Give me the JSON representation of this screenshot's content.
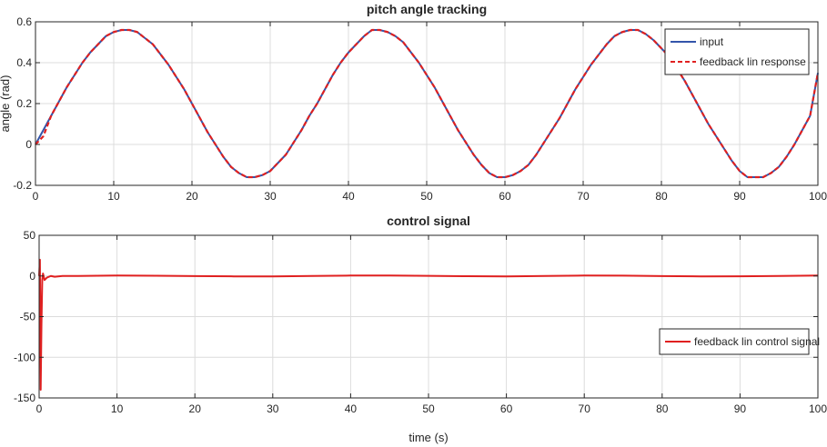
{
  "chart_data": [
    {
      "type": "line",
      "title": "pitch angle tracking",
      "xlabel": "",
      "ylabel": "angle (rad)",
      "xlim": [
        0,
        100
      ],
      "ylim": [
        -0.2,
        0.6
      ],
      "xticks": [
        0,
        10,
        20,
        30,
        40,
        50,
        60,
        70,
        80,
        90,
        100
      ],
      "yticks": [
        -0.2,
        0,
        0.2,
        0.4,
        0.6
      ],
      "ytick_labels": [
        "-0.2",
        "0",
        "0.2",
        "0.4",
        "0.6"
      ],
      "grid": true,
      "legend_position": "top-right",
      "series": [
        {
          "name": "input",
          "color": "#3355aa",
          "style": "solid",
          "x": [
            0,
            1,
            2,
            3,
            4,
            5,
            6,
            7,
            8,
            9,
            10,
            11,
            12,
            13,
            14,
            15,
            16,
            17,
            18,
            19,
            20,
            21,
            22,
            23,
            24,
            25,
            26,
            27,
            28,
            29,
            30,
            31,
            32,
            33,
            34,
            35,
            36,
            37,
            38,
            39,
            40,
            41,
            42,
            43,
            44,
            45,
            46,
            47,
            48,
            49,
            50,
            51,
            52,
            53,
            54,
            55,
            56,
            57,
            58,
            59,
            60,
            61,
            62,
            63,
            64,
            65,
            66,
            67,
            68,
            69,
            70,
            71,
            72,
            73,
            74,
            75,
            76,
            77,
            78,
            79,
            80,
            81,
            82,
            83,
            84,
            85,
            86,
            87,
            88,
            89,
            90,
            91,
            92,
            93,
            94,
            95,
            96,
            97,
            98,
            99,
            100
          ],
          "y": [
            0.0,
            0.07,
            0.14,
            0.21,
            0.28,
            0.34,
            0.4,
            0.45,
            0.49,
            0.53,
            0.55,
            0.56,
            0.56,
            0.55,
            0.52,
            0.49,
            0.44,
            0.39,
            0.33,
            0.27,
            0.2,
            0.13,
            0.06,
            0.0,
            -0.06,
            -0.11,
            -0.14,
            -0.16,
            -0.16,
            -0.15,
            -0.13,
            -0.09,
            -0.05,
            0.01,
            0.07,
            0.14,
            0.2,
            0.27,
            0.34,
            0.4,
            0.45,
            0.49,
            0.53,
            0.56,
            0.56,
            0.55,
            0.53,
            0.5,
            0.45,
            0.4,
            0.34,
            0.28,
            0.21,
            0.14,
            0.07,
            0.01,
            -0.05,
            -0.1,
            -0.14,
            -0.16,
            -0.16,
            -0.15,
            -0.13,
            -0.1,
            -0.05,
            0.01,
            0.07,
            0.13,
            0.2,
            0.27,
            0.33,
            0.39,
            0.44,
            0.49,
            0.53,
            0.55,
            0.56,
            0.56,
            0.54,
            0.51,
            0.47,
            0.43,
            0.37,
            0.31,
            0.24,
            0.17,
            0.1,
            0.04,
            -0.02,
            -0.08,
            -0.13,
            -0.16,
            -0.16,
            -0.16,
            -0.14,
            -0.11,
            -0.06,
            0.0,
            0.07,
            0.14,
            0.35
          ]
        },
        {
          "name": "feedback lin response",
          "color": "#e02020",
          "style": "dashed",
          "x": [
            0,
            0.5,
            1,
            2,
            3,
            4,
            5,
            6,
            7,
            8,
            9,
            10,
            11,
            12,
            13,
            14,
            15,
            16,
            17,
            18,
            19,
            20,
            21,
            22,
            23,
            24,
            25,
            26,
            27,
            28,
            29,
            30,
            31,
            32,
            33,
            34,
            35,
            36,
            37,
            38,
            39,
            40,
            41,
            42,
            43,
            44,
            45,
            46,
            47,
            48,
            49,
            50,
            51,
            52,
            53,
            54,
            55,
            56,
            57,
            58,
            59,
            60,
            61,
            62,
            63,
            64,
            65,
            66,
            67,
            68,
            69,
            70,
            71,
            72,
            73,
            74,
            75,
            76,
            77,
            78,
            79,
            80,
            81,
            82,
            83,
            84,
            85,
            86,
            87,
            88,
            89,
            90,
            91,
            92,
            93,
            94,
            95,
            96,
            97,
            98,
            99,
            100
          ],
          "y": [
            0.0,
            0.02,
            0.04,
            0.14,
            0.21,
            0.28,
            0.34,
            0.4,
            0.45,
            0.49,
            0.53,
            0.55,
            0.56,
            0.56,
            0.55,
            0.52,
            0.49,
            0.44,
            0.39,
            0.33,
            0.27,
            0.2,
            0.13,
            0.06,
            0.0,
            -0.06,
            -0.11,
            -0.14,
            -0.16,
            -0.16,
            -0.15,
            -0.13,
            -0.09,
            -0.05,
            0.01,
            0.07,
            0.14,
            0.2,
            0.27,
            0.34,
            0.4,
            0.45,
            0.49,
            0.53,
            0.56,
            0.56,
            0.55,
            0.53,
            0.5,
            0.45,
            0.4,
            0.34,
            0.28,
            0.21,
            0.14,
            0.07,
            0.01,
            -0.05,
            -0.1,
            -0.14,
            -0.16,
            -0.16,
            -0.15,
            -0.13,
            -0.1,
            -0.05,
            0.01,
            0.07,
            0.13,
            0.2,
            0.27,
            0.33,
            0.39,
            0.44,
            0.49,
            0.53,
            0.55,
            0.56,
            0.56,
            0.54,
            0.51,
            0.47,
            0.43,
            0.37,
            0.31,
            0.24,
            0.17,
            0.1,
            0.04,
            -0.02,
            -0.08,
            -0.13,
            -0.16,
            -0.16,
            -0.16,
            -0.14,
            -0.11,
            -0.06,
            0.0,
            0.07,
            0.14,
            0.35
          ]
        }
      ]
    },
    {
      "type": "line",
      "title": "control signal",
      "xlabel": "time (s)",
      "ylabel": "",
      "xlim": [
        0,
        100
      ],
      "ylim": [
        -150,
        50
      ],
      "xticks": [
        0,
        10,
        20,
        30,
        40,
        50,
        60,
        70,
        80,
        90,
        100
      ],
      "yticks": [
        -150,
        -100,
        -50,
        0,
        50
      ],
      "ytick_labels": [
        "-150",
        "-100",
        "-50",
        "0",
        "50"
      ],
      "grid": true,
      "legend_position": "bottom-right",
      "series": [
        {
          "name": "feedback lin control signal",
          "color": "#e02020",
          "style": "solid",
          "x": [
            0,
            0.1,
            0.2,
            0.3,
            0.4,
            0.5,
            0.7,
            1,
            1.5,
            2,
            3,
            5,
            10,
            15,
            20,
            25,
            30,
            35,
            40,
            45,
            50,
            55,
            60,
            65,
            70,
            75,
            80,
            85,
            90,
            95,
            100
          ],
          "y": [
            0,
            20,
            -140,
            -60,
            -5,
            3,
            -5,
            -2,
            0,
            -1,
            0,
            0,
            0.5,
            0.3,
            -0.2,
            -0.5,
            -0.5,
            0,
            0.5,
            0.5,
            0.2,
            -0.3,
            -0.5,
            0,
            0.5,
            0.4,
            -0.2,
            -0.5,
            -0.4,
            0,
            0.5
          ]
        }
      ]
    }
  ]
}
